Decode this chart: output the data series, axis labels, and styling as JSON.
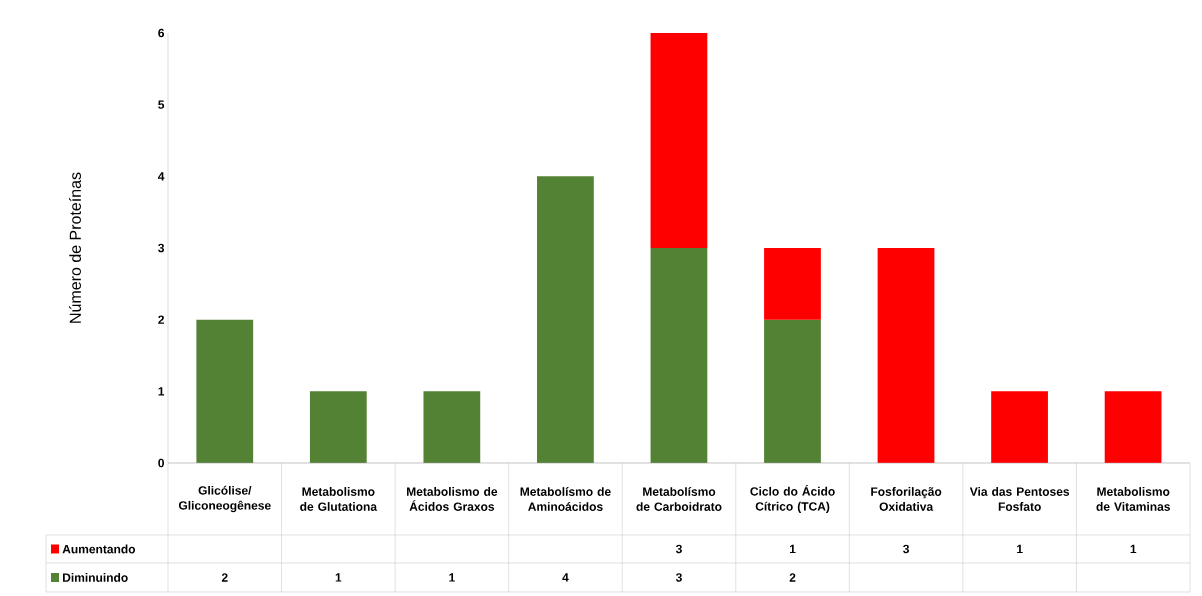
{
  "chart_data": {
    "type": "bar",
    "stacked": true,
    "ylabel": "Número de Proteínas",
    "categories": [
      "Glicólise/Gliconeogênese",
      "Metabolismo de Glutationa",
      "Metabolismo de Ácidos Graxos",
      "Metabolísmo de Aminoácidos",
      "Metabolísmo de Carboidrato",
      "Ciclo do Ácido Cítrico (TCA)",
      "Fosforilação Oxidativa",
      "Via das Pentoses Fosfato",
      "Metabolismo de Vitaminas"
    ],
    "series": [
      {
        "name": "Diminuindo",
        "color": "#548235",
        "values": [
          2,
          1,
          1,
          4,
          3,
          2,
          null,
          null,
          null
        ]
      },
      {
        "name": "Aumentando",
        "color": "#ff0000",
        "values": [
          null,
          null,
          null,
          null,
          3,
          1,
          3,
          1,
          1
        ]
      }
    ],
    "ylim": [
      0,
      6
    ],
    "yticks": [
      0,
      1,
      2,
      3,
      4,
      5,
      6
    ],
    "data_labels": true,
    "legend": "bottom left"
  }
}
